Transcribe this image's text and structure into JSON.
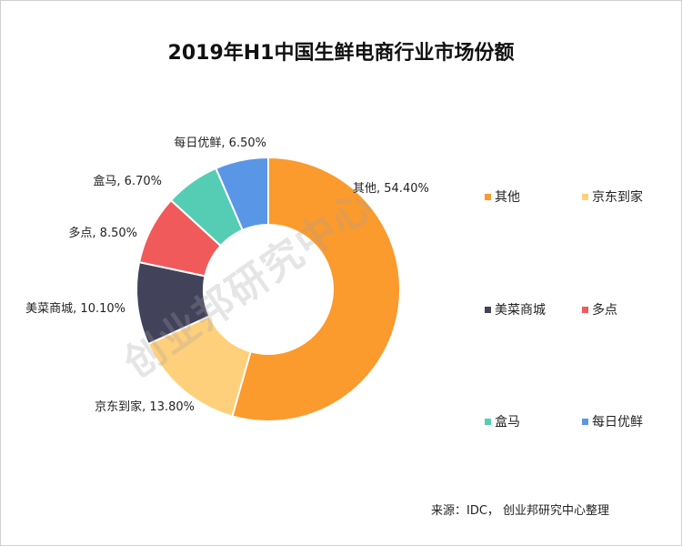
{
  "chart_data": {
    "type": "pie",
    "variant": "donut",
    "title": "2019年H1中国生鲜电商行业市场份额",
    "categories": [
      "其他",
      "京东到家",
      "美菜商城",
      "多点",
      "盒马",
      "每日优鲜"
    ],
    "values": [
      54.4,
      13.8,
      10.1,
      8.5,
      6.7,
      6.5
    ],
    "data_labels": [
      "其他, 54.40%",
      "京东到家, 13.80%",
      "美菜商城, 10.10%",
      "多点, 8.50%",
      "盒马, 6.70%",
      "每日优鲜, 6.50%"
    ],
    "unit": "%",
    "colors": [
      "#fb9a2d",
      "#ffd07c",
      "#42425a",
      "#f05a5a",
      "#55cdb5",
      "#5a96e6"
    ],
    "legend_position": "right"
  },
  "source": "来源：IDC， 创业邦研究中心整理",
  "watermark": "创业邦研究中心"
}
